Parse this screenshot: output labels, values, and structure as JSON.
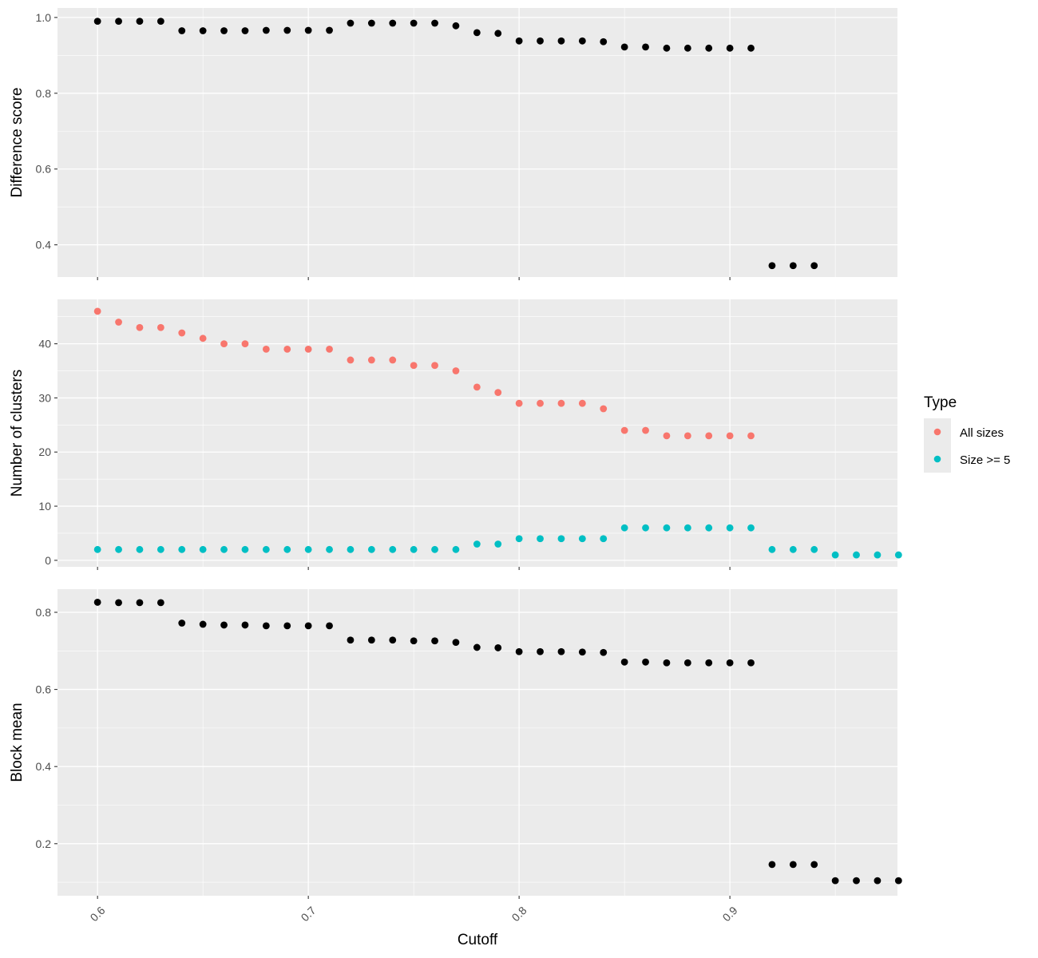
{
  "colors": {
    "panel_bg": "#EBEBEB",
    "grid": "#FFFFFF",
    "tick": "#333333",
    "point_black": "#000000",
    "all_sizes": "#F8766D",
    "size_ge5": "#00BFC4"
  },
  "legend": {
    "title": "Type",
    "placement": "right",
    "items": [
      {
        "label": "All sizes",
        "color": "#F8766D"
      },
      {
        "label": "Size >= 5",
        "color": "#00BFC4"
      }
    ]
  },
  "chart_data": [
    {
      "type": "scatter",
      "ylabel": "Difference score",
      "xlabel": "",
      "xlim": [
        0.581,
        0.9795
      ],
      "ylim": [
        0.315,
        1.025
      ],
      "x_ticks": [
        0.6,
        0.7,
        0.8,
        0.9
      ],
      "y_ticks": [
        0.4,
        0.6,
        0.8,
        1.0
      ],
      "y_tick_labels": [
        "0.4",
        "0.6",
        "0.8",
        "1.0"
      ],
      "grid": true,
      "series": [
        {
          "color": "#000000",
          "x": [
            0.6,
            0.61,
            0.62,
            0.63,
            0.64,
            0.65,
            0.66,
            0.67,
            0.68,
            0.69,
            0.7,
            0.71,
            0.72,
            0.73,
            0.74,
            0.75,
            0.76,
            0.77,
            0.78,
            0.79,
            0.8,
            0.81,
            0.82,
            0.83,
            0.84,
            0.85,
            0.86,
            0.87,
            0.88,
            0.89,
            0.9,
            0.91,
            0.92,
            0.93,
            0.94
          ],
          "y": [
            0.99,
            0.99,
            0.99,
            0.99,
            0.965,
            0.965,
            0.965,
            0.965,
            0.966,
            0.966,
            0.966,
            0.966,
            0.985,
            0.985,
            0.985,
            0.985,
            0.985,
            0.978,
            0.96,
            0.958,
            0.938,
            0.938,
            0.938,
            0.938,
            0.936,
            0.922,
            0.922,
            0.919,
            0.919,
            0.919,
            0.919,
            0.919,
            0.345,
            0.345,
            0.345
          ]
        }
      ]
    },
    {
      "type": "scatter",
      "ylabel": "Number of clusters",
      "xlabel": "",
      "xlim": [
        0.581,
        0.9795
      ],
      "ylim": [
        -1.2,
        48.2
      ],
      "x_ticks": [
        0.6,
        0.7,
        0.8,
        0.9
      ],
      "y_ticks": [
        0,
        10,
        20,
        30,
        40
      ],
      "y_tick_labels": [
        "0",
        "10",
        "20",
        "30",
        "40"
      ],
      "grid": true,
      "series": [
        {
          "name": "All sizes",
          "color": "#F8766D",
          "x": [
            0.6,
            0.61,
            0.62,
            0.63,
            0.64,
            0.65,
            0.66,
            0.67,
            0.68,
            0.69,
            0.7,
            0.71,
            0.72,
            0.73,
            0.74,
            0.75,
            0.76,
            0.77,
            0.78,
            0.79,
            0.8,
            0.81,
            0.82,
            0.83,
            0.84,
            0.85,
            0.86,
            0.87,
            0.88,
            0.89,
            0.9,
            0.91
          ],
          "y": [
            46,
            44,
            43,
            43,
            42,
            41,
            40,
            40,
            39,
            39,
            39,
            39,
            37,
            37,
            37,
            36,
            36,
            35,
            32,
            31,
            29,
            29,
            29,
            29,
            28,
            24,
            24,
            23,
            23,
            23,
            23,
            23
          ]
        },
        {
          "name": "Size >= 5",
          "color": "#00BFC4",
          "x": [
            0.6,
            0.61,
            0.62,
            0.63,
            0.64,
            0.65,
            0.66,
            0.67,
            0.68,
            0.69,
            0.7,
            0.71,
            0.72,
            0.73,
            0.74,
            0.75,
            0.76,
            0.77,
            0.78,
            0.79,
            0.8,
            0.81,
            0.82,
            0.83,
            0.84,
            0.85,
            0.86,
            0.87,
            0.88,
            0.89,
            0.9,
            0.91,
            0.92,
            0.93,
            0.94,
            0.95,
            0.96,
            0.97,
            0.98
          ],
          "y": [
            2,
            2,
            2,
            2,
            2,
            2,
            2,
            2,
            2,
            2,
            2,
            2,
            2,
            2,
            2,
            2,
            2,
            2,
            3,
            3,
            4,
            4,
            4,
            4,
            4,
            6,
            6,
            6,
            6,
            6,
            6,
            6,
            2,
            2,
            2,
            1,
            1,
            1,
            1
          ]
        }
      ]
    },
    {
      "type": "scatter",
      "ylabel": "Block mean",
      "xlabel": "Cutoff",
      "xlim": [
        0.581,
        0.9795
      ],
      "ylim": [
        0.065,
        0.86
      ],
      "x_ticks": [
        0.6,
        0.7,
        0.8,
        0.9
      ],
      "x_tick_labels": [
        "0.6",
        "0.7",
        "0.8",
        "0.9"
      ],
      "y_ticks": [
        0.2,
        0.4,
        0.6,
        0.8
      ],
      "y_tick_labels": [
        "0.2",
        "0.4",
        "0.6",
        "0.8"
      ],
      "grid": true,
      "series": [
        {
          "color": "#000000",
          "x": [
            0.6,
            0.61,
            0.62,
            0.63,
            0.64,
            0.65,
            0.66,
            0.67,
            0.68,
            0.69,
            0.7,
            0.71,
            0.72,
            0.73,
            0.74,
            0.75,
            0.76,
            0.77,
            0.78,
            0.79,
            0.8,
            0.81,
            0.82,
            0.83,
            0.84,
            0.85,
            0.86,
            0.87,
            0.88,
            0.89,
            0.9,
            0.91,
            0.92,
            0.93,
            0.94,
            0.95,
            0.96,
            0.97,
            0.98
          ],
          "y": [
            0.826,
            0.825,
            0.825,
            0.825,
            0.772,
            0.769,
            0.767,
            0.767,
            0.765,
            0.765,
            0.765,
            0.765,
            0.728,
            0.728,
            0.728,
            0.726,
            0.726,
            0.722,
            0.709,
            0.708,
            0.698,
            0.698,
            0.698,
            0.697,
            0.696,
            0.671,
            0.671,
            0.669,
            0.669,
            0.669,
            0.669,
            0.669,
            0.146,
            0.146,
            0.146,
            0.104,
            0.104,
            0.104,
            0.104
          ]
        }
      ]
    }
  ]
}
